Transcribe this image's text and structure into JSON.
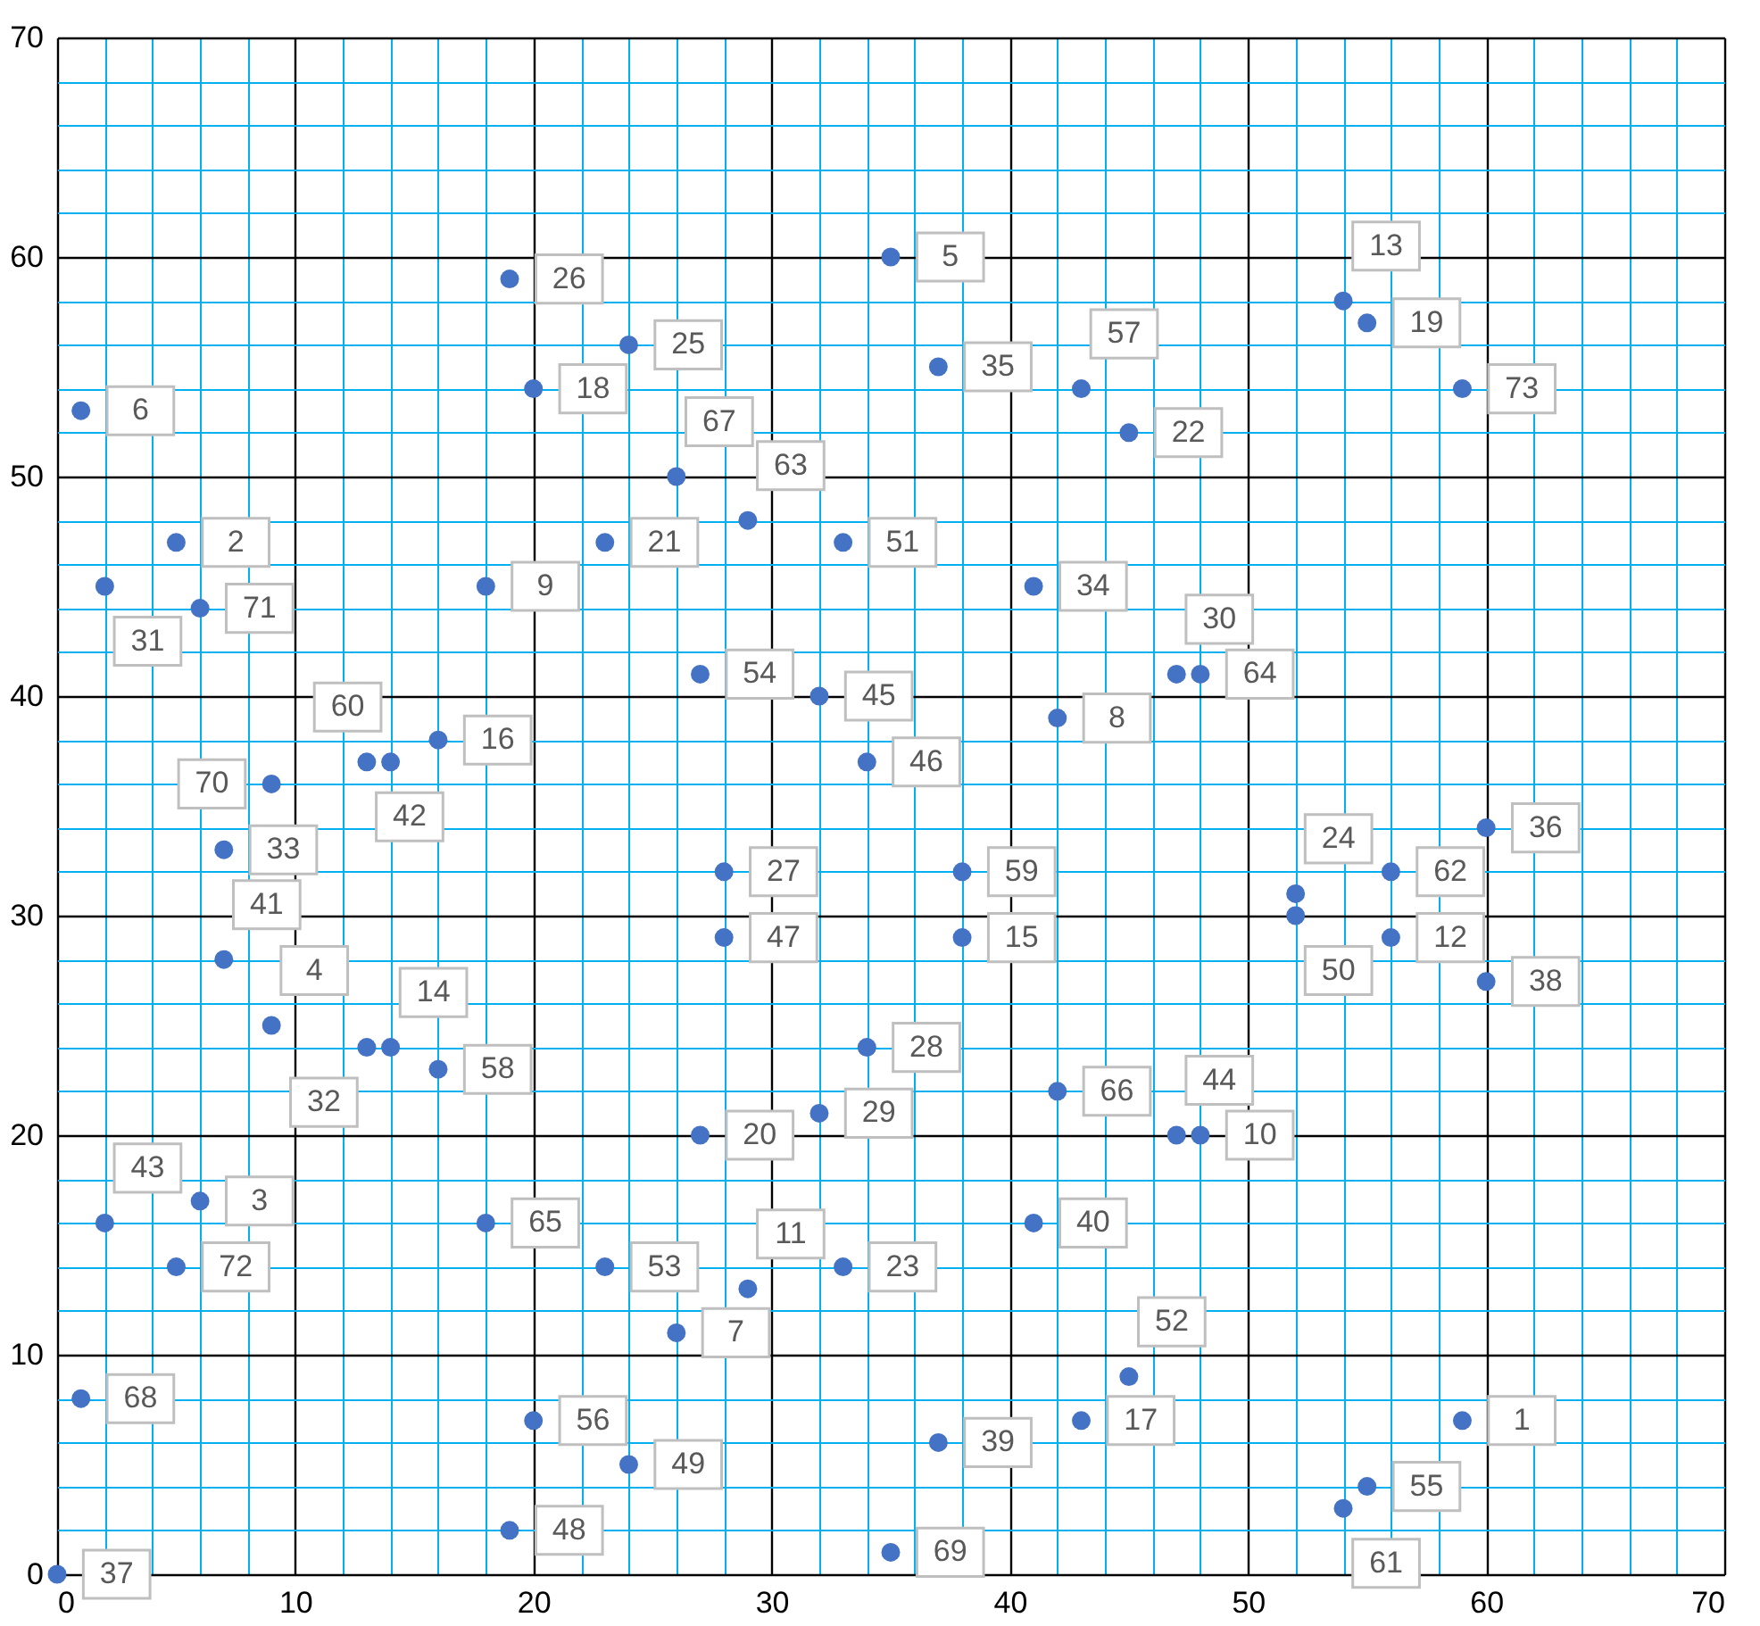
{
  "chart_data": {
    "type": "scatter",
    "x": [
      59,
      5,
      6,
      9,
      35,
      1,
      26,
      42,
      18,
      48,
      29,
      56,
      54,
      14,
      38,
      16,
      43,
      20,
      55,
      27,
      23,
      45,
      33,
      52,
      24,
      19,
      28,
      34,
      32,
      47,
      2,
      13,
      7,
      41,
      37,
      60,
      0,
      60,
      37,
      41,
      7,
      13,
      2,
      47,
      32,
      34,
      28,
      19,
      24,
      52,
      33,
      45,
      23,
      27,
      55,
      20,
      43,
      16,
      38,
      14,
      54,
      56,
      29,
      48,
      18,
      42,
      26,
      1,
      35,
      9,
      6,
      5,
      59
    ],
    "values": [
      7,
      47,
      17,
      25,
      60,
      53,
      11,
      39,
      45,
      20,
      13,
      29,
      58,
      24,
      29,
      38,
      7,
      54,
      57,
      20,
      47,
      52,
      14,
      31,
      56,
      59,
      32,
      24,
      21,
      41,
      45,
      24,
      33,
      45,
      55,
      34,
      0,
      27,
      6,
      16,
      28,
      37,
      16,
      20,
      40,
      37,
      29,
      2,
      5,
      30,
      47,
      9,
      14,
      41,
      4,
      7,
      54,
      23,
      32,
      37,
      3,
      32,
      48,
      41,
      16,
      22,
      50,
      8,
      1,
      36,
      44,
      14,
      54
    ],
    "annotations": [
      {
        "text": "1",
        "x": 59,
        "y": 7
      },
      {
        "text": "2",
        "x": 5,
        "y": 47
      },
      {
        "text": "3",
        "x": 6,
        "y": 17
      },
      {
        "text": "4",
        "x": 9,
        "y": 25
      },
      {
        "text": "5",
        "x": 35,
        "y": 60
      },
      {
        "text": "6",
        "x": 1,
        "y": 53
      },
      {
        "text": "7",
        "x": 26,
        "y": 11
      },
      {
        "text": "8",
        "x": 42,
        "y": 39
      },
      {
        "text": "9",
        "x": 18,
        "y": 45
      },
      {
        "text": "10",
        "x": 48,
        "y": 20
      },
      {
        "text": "11",
        "x": 29,
        "y": 13
      },
      {
        "text": "12",
        "x": 56,
        "y": 29
      },
      {
        "text": "13",
        "x": 54,
        "y": 58
      },
      {
        "text": "14",
        "x": 14,
        "y": 24
      },
      {
        "text": "15",
        "x": 38,
        "y": 29
      },
      {
        "text": "16",
        "x": 16,
        "y": 38
      },
      {
        "text": "17",
        "x": 43,
        "y": 7
      },
      {
        "text": "18",
        "x": 20,
        "y": 54
      },
      {
        "text": "19",
        "x": 55,
        "y": 57
      },
      {
        "text": "20",
        "x": 27,
        "y": 20
      },
      {
        "text": "21",
        "x": 23,
        "y": 47
      },
      {
        "text": "22",
        "x": 45,
        "y": 52
      },
      {
        "text": "23",
        "x": 33,
        "y": 14
      },
      {
        "text": "24",
        "x": 52,
        "y": 31
      },
      {
        "text": "25",
        "x": 24,
        "y": 56
      },
      {
        "text": "26",
        "x": 19,
        "y": 59
      },
      {
        "text": "27",
        "x": 28,
        "y": 32
      },
      {
        "text": "28",
        "x": 34,
        "y": 24
      },
      {
        "text": "29",
        "x": 32,
        "y": 21
      },
      {
        "text": "30",
        "x": 47,
        "y": 41
      },
      {
        "text": "31",
        "x": 2,
        "y": 45
      },
      {
        "text": "32",
        "x": 13,
        "y": 24
      },
      {
        "text": "33",
        "x": 7,
        "y": 33
      },
      {
        "text": "34",
        "x": 41,
        "y": 45
      },
      {
        "text": "35",
        "x": 37,
        "y": 55
      },
      {
        "text": "36",
        "x": 60,
        "y": 34
      },
      {
        "text": "37",
        "x": 0,
        "y": 0
      },
      {
        "text": "38",
        "x": 60,
        "y": 27
      },
      {
        "text": "39",
        "x": 37,
        "y": 6
      },
      {
        "text": "40",
        "x": 41,
        "y": 16
      },
      {
        "text": "41",
        "x": 7,
        "y": 28
      },
      {
        "text": "42",
        "x": 13,
        "y": 37
      },
      {
        "text": "43",
        "x": 2,
        "y": 16
      },
      {
        "text": "44",
        "x": 47,
        "y": 20
      },
      {
        "text": "45",
        "x": 32,
        "y": 40
      },
      {
        "text": "46",
        "x": 34,
        "y": 37
      },
      {
        "text": "47",
        "x": 28,
        "y": 29
      },
      {
        "text": "48",
        "x": 19,
        "y": 2
      },
      {
        "text": "49",
        "x": 24,
        "y": 5
      },
      {
        "text": "50",
        "x": 52,
        "y": 30
      },
      {
        "text": "51",
        "x": 33,
        "y": 47
      },
      {
        "text": "52",
        "x": 45,
        "y": 9
      },
      {
        "text": "53",
        "x": 23,
        "y": 14
      },
      {
        "text": "54",
        "x": 27,
        "y": 41
      },
      {
        "text": "55",
        "x": 55,
        "y": 4
      },
      {
        "text": "56",
        "x": 20,
        "y": 7
      },
      {
        "text": "57",
        "x": 43,
        "y": 54
      },
      {
        "text": "58",
        "x": 16,
        "y": 23
      },
      {
        "text": "59",
        "x": 38,
        "y": 32
      },
      {
        "text": "60",
        "x": 14,
        "y": 37
      },
      {
        "text": "61",
        "x": 54,
        "y": 3
      },
      {
        "text": "62",
        "x": 56,
        "y": 32
      },
      {
        "text": "63",
        "x": 29,
        "y": 48
      },
      {
        "text": "64",
        "x": 48,
        "y": 41
      },
      {
        "text": "65",
        "x": 18,
        "y": 16
      },
      {
        "text": "66",
        "x": 42,
        "y": 22
      },
      {
        "text": "67",
        "x": 26,
        "y": 50
      },
      {
        "text": "68",
        "x": 1,
        "y": 8
      },
      {
        "text": "69",
        "x": 35,
        "y": 1
      },
      {
        "text": "70",
        "x": 9,
        "y": 36
      },
      {
        "text": "71",
        "x": 6,
        "y": 44
      },
      {
        "text": "72",
        "x": 5,
        "y": 14
      },
      {
        "text": "73",
        "x": 59,
        "y": 54
      }
    ],
    "color": "#4472c4",
    "marker": "circle",
    "grid": true,
    "xlim": [
      0,
      70
    ],
    "ylim": [
      0,
      70
    ],
    "xticks": [
      0,
      {
        "value": 2,
        "label": null
      },
      {
        "value": 4,
        "label": null
      },
      {
        "value": 6,
        "label": null
      },
      {
        "value": 8,
        "label": null
      },
      10,
      {
        "value": 12,
        "label": null
      },
      {
        "value": 14,
        "label": null
      },
      {
        "value": 16,
        "label": null
      },
      {
        "value": 18,
        "label": null
      },
      20,
      {
        "value": 22,
        "label": null
      },
      {
        "value": 24,
        "label": null
      },
      {
        "value": 26,
        "label": null
      },
      {
        "value": 28,
        "label": null
      },
      30,
      {
        "value": 32,
        "label": null
      },
      {
        "value": 34,
        "label": null
      },
      {
        "value": 36,
        "label": null
      },
      {
        "value": 38,
        "label": null
      },
      40,
      {
        "value": 42,
        "label": null
      },
      {
        "value": 44,
        "label": null
      },
      {
        "value": 46,
        "label": null
      },
      {
        "value": 48,
        "label": null
      },
      50,
      {
        "value": 52,
        "label": null
      },
      {
        "value": 54,
        "label": null
      },
      {
        "value": 56,
        "label": null
      },
      {
        "value": 58,
        "label": null
      },
      60,
      {
        "value": 62,
        "label": null
      },
      {
        "value": 64,
        "label": null
      },
      {
        "value": 66,
        "label": null
      },
      {
        "value": 68,
        "label": null
      },
      70
    ],
    "yticks": [
      0,
      {
        "value": 2,
        "label": null
      },
      {
        "value": 4,
        "label": null
      },
      {
        "value": 6,
        "label": null
      },
      {
        "value": 8,
        "label": null
      },
      10,
      {
        "value": 12,
        "label": null
      },
      {
        "value": 14,
        "label": null
      },
      {
        "value": 16,
        "label": null
      },
      {
        "value": 18,
        "label": null
      },
      20,
      {
        "value": 22,
        "label": null
      },
      {
        "value": 24,
        "label": null
      },
      {
        "value": 26,
        "label": null
      },
      {
        "value": 28,
        "label": null
      },
      30,
      {
        "value": 32,
        "label": null
      },
      {
        "value": 34,
        "label": null
      },
      {
        "value": 36,
        "label": null
      },
      {
        "value": 38,
        "label": null
      },
      40,
      {
        "value": 42,
        "label": null
      },
      {
        "value": 44,
        "label": null
      },
      {
        "value": 46,
        "label": null
      },
      {
        "value": 48,
        "label": null
      },
      50,
      {
        "value": 52,
        "label": null
      },
      {
        "value": 54,
        "label": null
      },
      {
        "value": 56,
        "label": null
      },
      {
        "value": 58,
        "label": null
      },
      60,
      {
        "value": 62,
        "label": null
      },
      {
        "value": 64,
        "label": null
      },
      {
        "value": 66,
        "label": null
      },
      {
        "value": 68,
        "label": null
      },
      70
    ]
  }
}
